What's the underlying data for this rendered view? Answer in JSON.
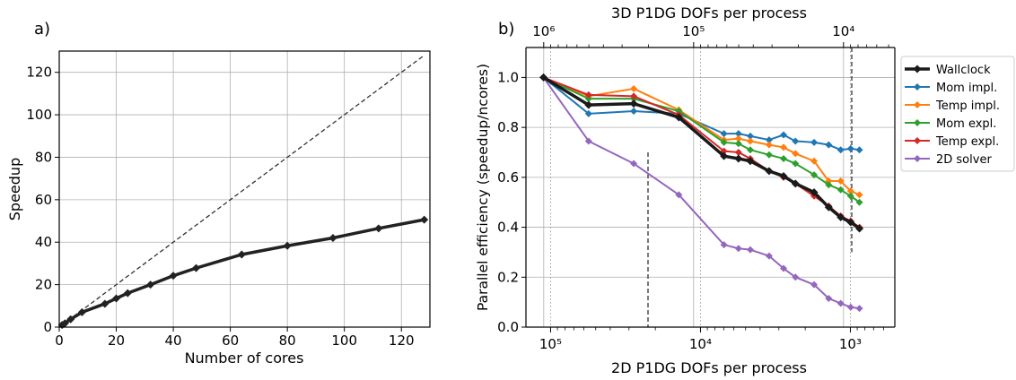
{
  "chart_data": [
    {
      "type": "line",
      "panel_label": "a)",
      "xlabel": "Number of cores",
      "ylabel": "Speedup",
      "xlim": [
        0,
        130
      ],
      "ylim": [
        0,
        130
      ],
      "x_ticks": [
        0,
        20,
        40,
        60,
        80,
        100,
        120
      ],
      "y_ticks": [
        0,
        20,
        40,
        60,
        80,
        100,
        120
      ],
      "grid": true,
      "series": [
        {
          "style": "solid",
          "color": "#222222",
          "marker": "diamond",
          "x": [
            1,
            2,
            4,
            8,
            16,
            20,
            24,
            32,
            40,
            48,
            64,
            80,
            96,
            112,
            128
          ],
          "y": [
            1.0,
            1.8,
            3.7,
            7.0,
            11.0,
            13.5,
            16.0,
            20.0,
            24.2,
            27.8,
            34.2,
            38.3,
            42.0,
            46.5,
            50.6
          ]
        },
        {
          "style": "dashed",
          "color": "#333333",
          "x": [
            1,
            128
          ],
          "y": [
            1,
            128
          ]
        }
      ]
    },
    {
      "type": "line",
      "panel_label": "b)",
      "xlabel": "2D P1DG DOFs per process",
      "ylabel": "Parallel efficiency (speedup/ncores)",
      "top_xlabel": "3D P1DG DOFs per process",
      "x_scale": "log",
      "x_reversed": true,
      "xlim": [
        146000,
        505
      ],
      "ylim": [
        0,
        1.12
      ],
      "y_ticks": [
        0.0,
        0.2,
        0.4,
        0.6,
        0.8,
        1.0
      ],
      "y_tick_labels": [
        "0.0",
        "0.2",
        "0.4",
        "0.6",
        "0.8",
        "1.0"
      ],
      "x_major_ticks": [
        100000,
        10000,
        1000
      ],
      "x_major_labels": [
        "10⁵",
        "10⁴",
        "10³"
      ],
      "top_x_major_ticks": [
        1000000,
        100000,
        10000
      ],
      "top_x_major_labels": [
        "10⁶",
        "10⁵",
        "10⁴"
      ],
      "grid": true,
      "legend_position": "outside right, top",
      "series": [
        {
          "name": "Wallclock",
          "color": "#1a1a1a",
          "y": [
            1.0,
            0.89,
            0.895,
            0.84,
            0.685,
            0.675,
            0.665,
            0.625,
            0.605,
            0.575,
            0.54,
            0.48,
            0.44,
            0.42,
            0.395
          ]
        },
        {
          "name": "Mom impl.",
          "color": "#1f77b4",
          "y": [
            1.0,
            0.855,
            0.865,
            0.855,
            0.775,
            0.775,
            0.765,
            0.75,
            0.77,
            0.745,
            0.74,
            0.73,
            0.71,
            0.715,
            0.71
          ]
        },
        {
          "name": "Temp impl.",
          "color": "#ff7f0e",
          "y": [
            1.0,
            0.925,
            0.955,
            0.87,
            0.75,
            0.755,
            0.745,
            0.73,
            0.72,
            0.695,
            0.665,
            0.585,
            0.585,
            0.545,
            0.53
          ]
        },
        {
          "name": "Mom expl.",
          "color": "#2ca02c",
          "y": [
            1.0,
            0.915,
            0.915,
            0.865,
            0.74,
            0.735,
            0.71,
            0.69,
            0.675,
            0.655,
            0.61,
            0.57,
            0.55,
            0.525,
            0.5
          ]
        },
        {
          "name": "Temp expl.",
          "color": "#d62728",
          "y": [
            1.0,
            0.93,
            0.925,
            0.85,
            0.705,
            0.7,
            0.675,
            0.625,
            0.6,
            0.575,
            0.525,
            0.485,
            0.445,
            0.425,
            0.4
          ]
        },
        {
          "name": "2D solver",
          "color": "#9467bd",
          "y": [
            1.0,
            0.745,
            0.655,
            0.53,
            0.33,
            0.315,
            0.31,
            0.285,
            0.235,
            0.2,
            0.17,
            0.115,
            0.095,
            0.08,
            0.075
          ]
        }
      ],
      "x": [
        111500,
        55750,
        27880,
        13940,
        6970,
        5575,
        4650,
        3485,
        2790,
        2325,
        1745,
        1395,
        1160,
        995,
        870
      ]
    }
  ]
}
